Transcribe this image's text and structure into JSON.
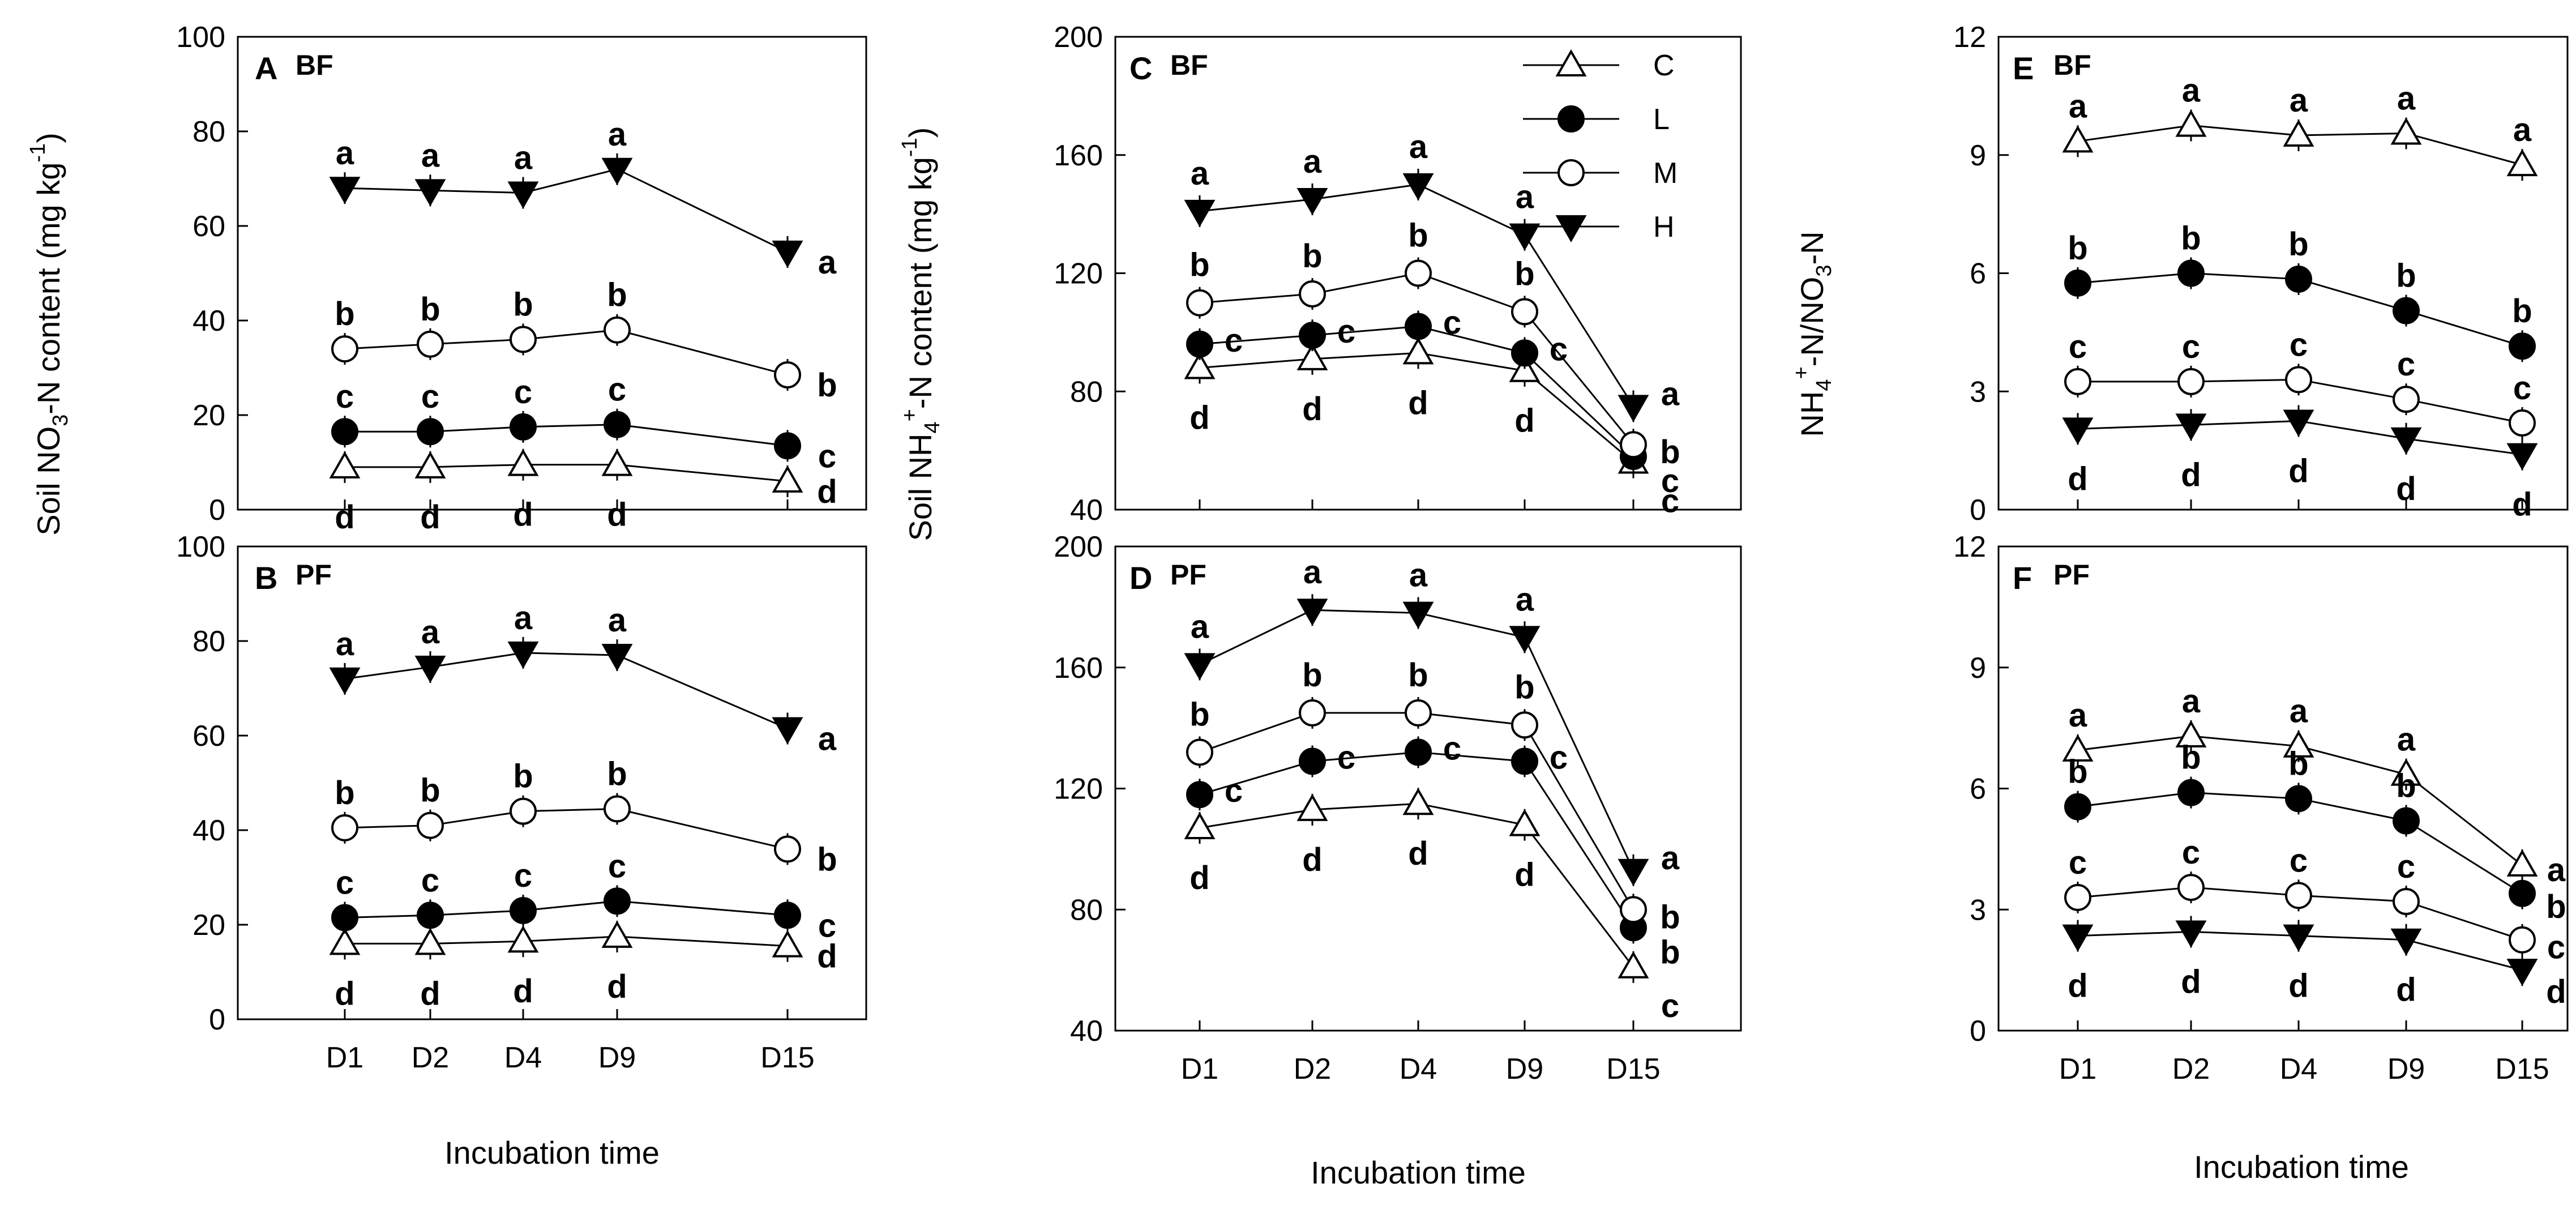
{
  "figure": {
    "shared_xlabel": "Incubation time",
    "ylabel_no3": "Soil NO3--N content (mg kg-1)",
    "ylabel_nh4": "Soil NH4+-N content (mg kg-1)",
    "ylabel_ratio": "NH4+-N/NO3--N"
  },
  "legend": [
    {
      "name": "C",
      "marker": "triangle-open"
    },
    {
      "name": "L",
      "marker": "circle-filled"
    },
    {
      "name": "M",
      "marker": "circle-open"
    },
    {
      "name": "H",
      "marker": "triangle-down-filled"
    }
  ],
  "colors": {
    "stroke": "#000000",
    "open_fill": "#ffffff",
    "filled": "#000000"
  },
  "chart_data": [
    {
      "id": "A",
      "letter": "A",
      "site": "BF",
      "type": "line",
      "ylim": [
        0,
        100
      ],
      "yticks": [
        0,
        20,
        40,
        60,
        80,
        100
      ],
      "categories": [
        "D1",
        "D2",
        "D4",
        "D9",
        "D15"
      ],
      "series": [
        {
          "name": "C",
          "values": [
            9,
            9,
            9.5,
            9.5,
            6
          ],
          "letters": [
            "d",
            "d",
            "d",
            "d",
            "d"
          ]
        },
        {
          "name": "L",
          "values": [
            16.5,
            16.5,
            17.5,
            18,
            13.5
          ],
          "letters": [
            "c",
            "c",
            "c",
            "c",
            "c"
          ]
        },
        {
          "name": "M",
          "values": [
            34,
            35,
            36,
            38,
            28.5
          ],
          "letters": [
            "b",
            "b",
            "b",
            "b",
            "b"
          ]
        },
        {
          "name": "H",
          "values": [
            68,
            67.5,
            67,
            72,
            54.5
          ],
          "letters": [
            "a",
            "a",
            "a",
            "a",
            "a"
          ]
        }
      ]
    },
    {
      "id": "B",
      "letter": "B",
      "site": "PF",
      "type": "line",
      "ylim": [
        0,
        100
      ],
      "yticks": [
        0,
        20,
        40,
        60,
        80,
        100
      ],
      "categories": [
        "D1",
        "D2",
        "D4",
        "D9",
        "D15"
      ],
      "series": [
        {
          "name": "C",
          "values": [
            16,
            16,
            16.5,
            17.5,
            15.5
          ],
          "letters": [
            "d",
            "d",
            "d",
            "d",
            "d"
          ]
        },
        {
          "name": "L",
          "values": [
            21.5,
            22,
            23,
            25,
            22
          ],
          "letters": [
            "c",
            "c",
            "c",
            "c",
            "c"
          ]
        },
        {
          "name": "M",
          "values": [
            40.5,
            41,
            44,
            44.5,
            36
          ],
          "letters": [
            "b",
            "b",
            "b",
            "b",
            "b"
          ]
        },
        {
          "name": "H",
          "values": [
            72,
            74.5,
            77.5,
            77,
            61.5
          ],
          "letters": [
            "a",
            "a",
            "a",
            "a",
            "a"
          ]
        }
      ]
    },
    {
      "id": "C",
      "letter": "C",
      "site": "BF",
      "type": "line",
      "ylim": [
        40,
        200
      ],
      "yticks": [
        40,
        80,
        120,
        160,
        200
      ],
      "categories": [
        "D1",
        "D2",
        "D4",
        "D9",
        "D15"
      ],
      "series": [
        {
          "name": "C",
          "values": [
            88,
            91,
            93,
            87,
            56
          ],
          "letters": [
            "d",
            "d",
            "d",
            "d",
            "c"
          ]
        },
        {
          "name": "L",
          "values": [
            96,
            99,
            102,
            93,
            58
          ],
          "letters": [
            "c",
            "c",
            "c",
            "c",
            "c"
          ]
        },
        {
          "name": "M",
          "values": [
            110,
            113,
            120,
            107,
            62
          ],
          "letters": [
            "b",
            "b",
            "b",
            "b",
            "b"
          ]
        },
        {
          "name": "H",
          "values": [
            141,
            145,
            150,
            133,
            75
          ],
          "letters": [
            "a",
            "a",
            "a",
            "a",
            "a"
          ]
        }
      ]
    },
    {
      "id": "D",
      "letter": "D",
      "site": "PF",
      "type": "line",
      "ylim": [
        40,
        200
      ],
      "yticks": [
        40,
        80,
        120,
        160,
        200
      ],
      "categories": [
        "D1",
        "D2",
        "D4",
        "D9",
        "D15"
      ],
      "series": [
        {
          "name": "C",
          "values": [
            107,
            113,
            115,
            108,
            61
          ],
          "letters": [
            "d",
            "d",
            "d",
            "d",
            "c"
          ]
        },
        {
          "name": "L",
          "values": [
            118,
            129,
            132,
            129,
            74
          ],
          "letters": [
            "c",
            "c",
            "c",
            "c",
            "b"
          ]
        },
        {
          "name": "M",
          "values": [
            132,
            145,
            145,
            141,
            80
          ],
          "letters": [
            "b",
            "b",
            "b",
            "b",
            "b"
          ]
        },
        {
          "name": "H",
          "values": [
            161,
            179,
            178,
            170,
            93
          ],
          "letters": [
            "a",
            "a",
            "a",
            "a",
            "a"
          ]
        }
      ]
    },
    {
      "id": "E",
      "letter": "E",
      "site": "BF",
      "type": "line",
      "ylim": [
        0,
        12
      ],
      "yticks": [
        0,
        3,
        6,
        9,
        12
      ],
      "categories": [
        "D1",
        "D2",
        "D4",
        "D9",
        "D15"
      ],
      "series": [
        {
          "name": "C",
          "values": [
            9.35,
            9.75,
            9.5,
            9.55,
            8.75
          ],
          "letters": [
            "a",
            "a",
            "a",
            "a",
            "a"
          ]
        },
        {
          "name": "L",
          "values": [
            5.75,
            6.0,
            5.85,
            5.05,
            4.15
          ],
          "letters": [
            "b",
            "b",
            "b",
            "b",
            "b"
          ]
        },
        {
          "name": "M",
          "values": [
            3.25,
            3.25,
            3.3,
            2.8,
            2.2
          ],
          "letters": [
            "c",
            "c",
            "c",
            "c",
            "c"
          ]
        },
        {
          "name": "H",
          "values": [
            2.05,
            2.15,
            2.25,
            1.8,
            1.4
          ],
          "letters": [
            "d",
            "d",
            "d",
            "d",
            "d"
          ]
        }
      ]
    },
    {
      "id": "F",
      "letter": "F",
      "site": "PF",
      "type": "line",
      "ylim": [
        0,
        12
      ],
      "yticks": [
        0,
        3,
        6,
        9,
        12
      ],
      "categories": [
        "D1",
        "D2",
        "D4",
        "D9",
        "D15"
      ],
      "series": [
        {
          "name": "C",
          "values": [
            6.95,
            7.3,
            7.05,
            6.35,
            4.1
          ],
          "letters": [
            "a",
            "a",
            "a",
            "a",
            "a"
          ]
        },
        {
          "name": "L",
          "values": [
            5.55,
            5.9,
            5.75,
            5.2,
            3.4
          ],
          "letters": [
            "b",
            "b",
            "b",
            "b",
            "b"
          ]
        },
        {
          "name": "M",
          "values": [
            3.3,
            3.55,
            3.35,
            3.2,
            2.25
          ],
          "letters": [
            "c",
            "c",
            "c",
            "c",
            "c"
          ]
        },
        {
          "name": "H",
          "values": [
            2.35,
            2.45,
            2.35,
            2.25,
            1.5
          ],
          "letters": [
            "d",
            "d",
            "d",
            "d",
            "d"
          ]
        }
      ]
    }
  ]
}
